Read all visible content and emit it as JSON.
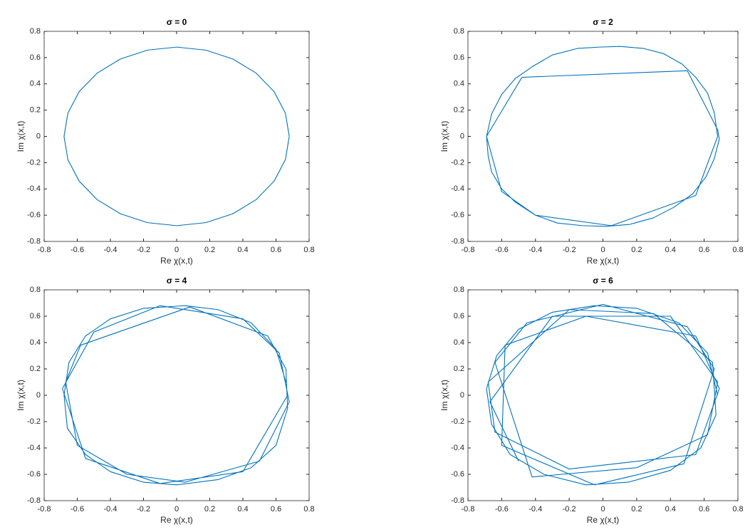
{
  "chart_data": [
    {
      "type": "line",
      "title": "σ = 0",
      "x_label": "Re χ(x,t)",
      "y_label": "Im χ(x,t)",
      "color": "#0072bd",
      "x": [
        0.68,
        0.657,
        0.589,
        0.481,
        0.34,
        0.176,
        0,
        -0.176,
        -0.34,
        -0.481,
        -0.589,
        -0.657,
        -0.68,
        -0.657,
        -0.589,
        -0.481,
        -0.34,
        -0.176,
        0,
        0.176,
        0.34,
        0.481,
        0.589,
        0.657,
        0.68
      ],
      "y": [
        0,
        0.176,
        0.34,
        0.481,
        0.589,
        0.657,
        0.68,
        0.657,
        0.589,
        0.481,
        0.34,
        0.176,
        0,
        -0.176,
        -0.34,
        -0.481,
        -0.589,
        -0.657,
        -0.68,
        -0.657,
        -0.589,
        -0.481,
        -0.34,
        -0.176,
        0
      ],
      "xlim": [
        -0.8,
        0.8
      ],
      "ylim": [
        -0.8,
        0.8
      ],
      "xticks": [
        -0.8,
        -0.6,
        -0.4,
        -0.2,
        0,
        0.2,
        0.4,
        0.6,
        0.8
      ],
      "yticks": [
        -0.8,
        -0.6,
        -0.4,
        -0.2,
        0,
        0.2,
        0.4,
        0.6,
        0.8
      ]
    },
    {
      "type": "line",
      "title": "σ = 2",
      "x_label": "Re χ(x,t)",
      "y_label": "Im χ(x,t)",
      "color": "#0072bd",
      "x": [
        0.68,
        0.66,
        0.62,
        0.55,
        0.47,
        0.36,
        0.24,
        0.1,
        -0.02,
        -0.15,
        -0.3,
        -0.42,
        -0.52,
        -0.6,
        -0.66,
        -0.69,
        -0.68,
        -0.66,
        -0.6,
        -0.52,
        -0.4,
        -0.27,
        -0.12,
        0.02,
        0.16,
        0.3,
        0.42,
        0.53,
        0.61,
        0.66,
        0.69,
        0.68,
        0.5,
        -0.48,
        -0.69,
        -0.6,
        -0.4,
        0.05,
        0.55,
        0.68
      ],
      "y": [
        0,
        0.18,
        0.33,
        0.45,
        0.55,
        0.63,
        0.67,
        0.685,
        0.68,
        0.67,
        0.62,
        0.53,
        0.44,
        0.32,
        0.17,
        0,
        -0.15,
        -0.27,
        -0.4,
        -0.5,
        -0.6,
        -0.66,
        -0.68,
        -0.685,
        -0.67,
        -0.62,
        -0.54,
        -0.44,
        -0.31,
        -0.17,
        -0.02,
        0.05,
        0.5,
        0.45,
        0,
        -0.42,
        -0.6,
        -0.68,
        -0.45,
        0
      ],
      "xlim": [
        -0.8,
        0.8
      ],
      "ylim": [
        -0.8,
        0.8
      ],
      "xticks": [
        -0.8,
        -0.6,
        -0.4,
        -0.2,
        0,
        0.2,
        0.4,
        0.6,
        0.8
      ],
      "yticks": [
        -0.8,
        -0.6,
        -0.4,
        -0.2,
        0,
        0.2,
        0.4,
        0.6,
        0.8
      ]
    },
    {
      "type": "line",
      "title": "σ = 4",
      "x_label": "Re χ(x,t)",
      "y_label": "Im χ(x,t)",
      "color": "#0072bd",
      "x": [
        0.66,
        0.6,
        0.45,
        0.25,
        0.05,
        -0.2,
        -0.4,
        -0.55,
        -0.65,
        -0.68,
        -0.66,
        -0.55,
        -0.4,
        -0.2,
        0,
        0.25,
        0.45,
        0.6,
        0.67,
        0.66,
        0.55,
        0.08,
        -0.58,
        -0.67,
        -0.6,
        -0.3,
        0.05,
        0.5,
        0.68,
        0.62,
        0.4,
        -0.1,
        -0.5,
        -0.69,
        -0.55,
        -0.1,
        0.4,
        0.67
      ],
      "y": [
        0.1,
        0.35,
        0.55,
        0.65,
        0.68,
        0.66,
        0.58,
        0.45,
        0.25,
        0,
        -0.25,
        -0.45,
        -0.58,
        -0.66,
        -0.68,
        -0.64,
        -0.55,
        -0.38,
        -0.1,
        0.2,
        0.45,
        0.67,
        0.38,
        0.1,
        -0.38,
        -0.6,
        -0.66,
        -0.5,
        -0.05,
        0.32,
        0.58,
        0.68,
        0.48,
        0.05,
        -0.48,
        -0.67,
        -0.58,
        0
      ],
      "xlim": [
        -0.8,
        0.8
      ],
      "ylim": [
        -0.8,
        0.8
      ],
      "xticks": [
        -0.8,
        -0.6,
        -0.4,
        -0.2,
        0,
        0.2,
        0.4,
        0.6,
        0.8
      ],
      "yticks": [
        -0.8,
        -0.6,
        -0.4,
        -0.2,
        0,
        0.2,
        0.4,
        0.6,
        0.8
      ]
    },
    {
      "type": "line",
      "title": "σ = 6",
      "x_label": "Re χ(x,t)",
      "y_label": "Im χ(x,t)",
      "color": "#0072bd",
      "x": [
        0.68,
        0.62,
        0.45,
        0.2,
        -0.05,
        -0.3,
        -0.5,
        -0.63,
        -0.69,
        -0.66,
        -0.55,
        -0.35,
        -0.1,
        0.15,
        0.4,
        0.58,
        0.67,
        0.65,
        0.3,
        -0.2,
        -0.68,
        -0.64,
        -0.2,
        0.55,
        0.69,
        0.55,
        -0.1,
        -0.58,
        -0.6,
        -0.05,
        0.48,
        0.66,
        0.5,
        0,
        -0.45,
        -0.64,
        -0.42,
        0.2,
        0.62,
        0.68,
        0.4,
        -0.3,
        -0.67,
        -0.5
      ],
      "y": [
        0,
        0.32,
        0.55,
        0.66,
        0.68,
        0.63,
        0.5,
        0.3,
        0.05,
        -0.22,
        -0.45,
        -0.6,
        -0.68,
        -0.66,
        -0.57,
        -0.4,
        -0.15,
        0.25,
        0.62,
        0.65,
        0.1,
        -0.28,
        -0.56,
        -0.45,
        0.05,
        0.45,
        0.6,
        0.38,
        -0.38,
        -0.68,
        -0.52,
        0.2,
        0.52,
        0.69,
        0.55,
        0.25,
        -0.62,
        -0.55,
        -0.3,
        0.1,
        0.6,
        0.6,
        -0.05,
        -0.5
      ],
      "xlim": [
        -0.8,
        0.8
      ],
      "ylim": [
        -0.8,
        0.8
      ],
      "xticks": [
        -0.8,
        -0.6,
        -0.4,
        -0.2,
        0,
        0.2,
        0.4,
        0.6,
        0.8
      ],
      "yticks": [
        -0.8,
        -0.6,
        -0.4,
        -0.2,
        0,
        0.2,
        0.4,
        0.6,
        0.8
      ]
    }
  ]
}
